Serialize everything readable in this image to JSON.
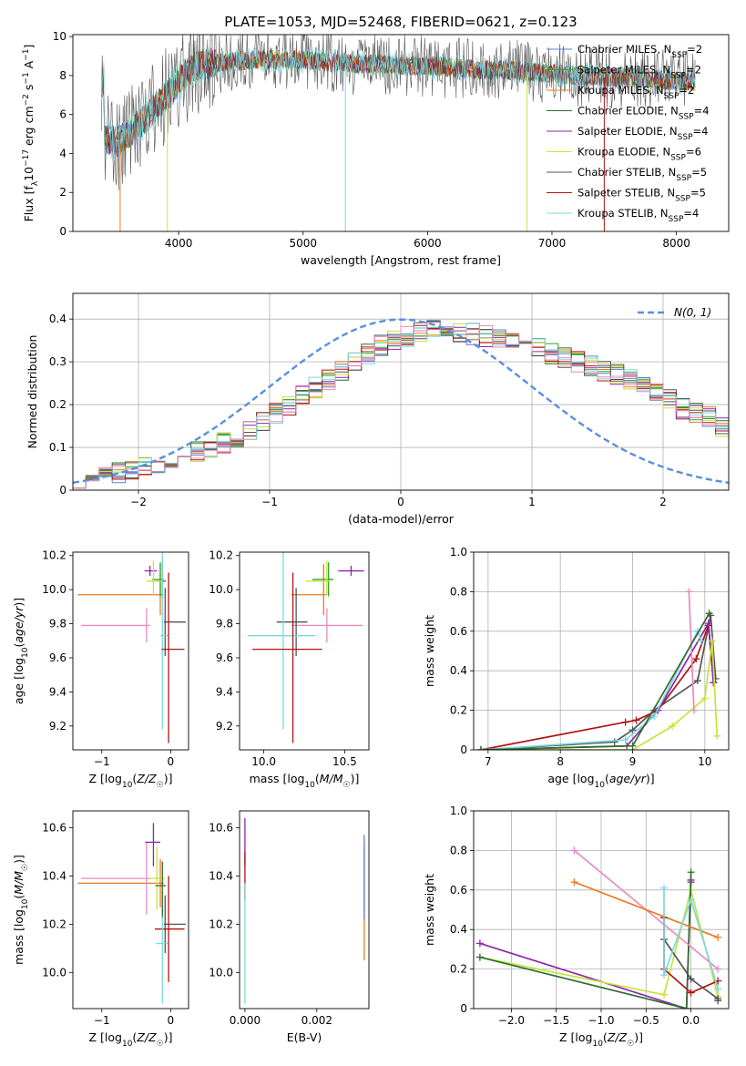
{
  "figure": {
    "title": "PLATE=1053, MJD=52468, FIBERID=0621, z=0.123"
  },
  "colors": {
    "Chabrier MILES": "#5b7fd8",
    "Salpeter MILES": "#2ea52e",
    "Kroupa MILES": "#e87b1e",
    "Chabrier ELODIE": "#2f6e2f",
    "Salpeter ELODIE": "#8e24aa",
    "Kroupa ELODIE": "#c6e43a",
    "Chabrier STELIB": "#555555",
    "Salpeter STELIB": "#b01414",
    "Kroupa STELIB": "#7ad9e0",
    "pink": "#e88ac0",
    "gaussian": "#5b8ee0"
  },
  "chart_data": [
    {
      "id": "spectrum",
      "type": "line",
      "xlabel": "wavelength [Angstrom, rest frame]",
      "ylabel": "Flux [fλ10⁻¹⁷ erg cm⁻² s⁻¹ A⁻¹]",
      "xlim": [
        3150,
        8420
      ],
      "ylim": [
        0,
        10.1
      ],
      "xticks": [
        4000,
        5000,
        6000,
        7000,
        8000
      ],
      "yticks": [
        0,
        2,
        4,
        6,
        8,
        10
      ],
      "continuum": {
        "x": [
          3400,
          3500,
          3600,
          3700,
          3800,
          3900,
          4000,
          4100,
          4200,
          4400,
          4600,
          4800,
          5000,
          5200,
          5400,
          5600,
          5800,
          6000,
          6200,
          6400,
          6600,
          6800,
          7000,
          7200,
          7400,
          7600,
          7800,
          8000,
          8150
        ],
        "y": [
          4.8,
          4.6,
          5.0,
          5.6,
          6.3,
          6.9,
          7.7,
          8.3,
          8.6,
          8.7,
          8.8,
          8.8,
          8.8,
          8.7,
          8.6,
          8.6,
          8.5,
          8.5,
          8.4,
          8.3,
          8.3,
          8.2,
          8.1,
          8.0,
          7.9,
          7.9,
          7.8,
          7.7,
          7.7
        ]
      },
      "xrange": [
        3380,
        8150
      ],
      "legend": [
        "Chabrier MILES, N_SSP=2",
        "Salpeter MILES, N_SSP=2",
        "Kroupa MILES, N_SSP=2",
        "Chabrier ELODIE, N_SSP=4",
        "Salpeter ELODIE, N_SSP=4",
        "Kroupa ELODIE, N_SSP=6",
        "Chabrier STELIB, N_SSP=5",
        "Salpeter STELIB, N_SSP=5",
        "Kroupa STELIB, N_SSP=4"
      ],
      "legend_loc": "upper right"
    },
    {
      "id": "residuals",
      "type": "histogram",
      "xlabel": "(data-model)/error",
      "ylabel": "Normed distribution",
      "xlim": [
        -2.5,
        2.5
      ],
      "ylim": [
        0,
        0.46
      ],
      "xticks": [
        -2,
        -1,
        0,
        1,
        2
      ],
      "yticks": [
        0,
        0.1,
        0.2,
        0.3,
        0.4
      ],
      "bin_width": 0.1,
      "bin_start": -2.5,
      "baseline": [
        0.02,
        0.03,
        0.035,
        0.04,
        0.05,
        0.055,
        0.06,
        0.07,
        0.08,
        0.09,
        0.1,
        0.11,
        0.12,
        0.14,
        0.16,
        0.18,
        0.2,
        0.22,
        0.24,
        0.26,
        0.28,
        0.3,
        0.32,
        0.34,
        0.35,
        0.36,
        0.37,
        0.38,
        0.375,
        0.37,
        0.365,
        0.36,
        0.35,
        0.345,
        0.34,
        0.33,
        0.32,
        0.31,
        0.3,
        0.29,
        0.28,
        0.27,
        0.26,
        0.25,
        0.23,
        0.21,
        0.19,
        0.18,
        0.17,
        0.15,
        0.14,
        0.13,
        0.11,
        0.1,
        0.09,
        0.08,
        0.07,
        0.06,
        0.05,
        0.04
      ],
      "gaussian_label": "N(0, 1)",
      "legend_loc": "upper right"
    },
    {
      "id": "age_vs_Z",
      "type": "errorbar",
      "xlabel": "Z [log10(Z/Z☉)]",
      "ylabel": "age [log10(age/yr)]",
      "xlim": [
        -1.42,
        0.26
      ],
      "ylim": [
        9.06,
        10.22
      ],
      "xticks": [
        -1,
        0
      ],
      "yticks": [
        9.2,
        9.4,
        9.6,
        9.8,
        10.0,
        10.2
      ],
      "points": [
        {
          "model": "Kroupa MILES",
          "x": -0.15,
          "y": 9.97,
          "xerr": [
            1.2,
            0.05
          ],
          "yerr": [
            0.12,
            0.18
          ]
        },
        {
          "model": "Salpeter MILES",
          "x": -0.15,
          "y": 10.06,
          "xerr": [
            0.12,
            0.05
          ],
          "yerr": [
            0.1,
            0.1
          ]
        },
        {
          "model": "Chabrier ELODIE",
          "x": -0.12,
          "y": 10.05,
          "xerr": [
            0.1,
            0.05
          ],
          "yerr": [
            0.1,
            0.12
          ]
        },
        {
          "model": "Salpeter ELODIE",
          "x": -0.3,
          "y": 10.11,
          "xerr": [
            0.08,
            0.1
          ],
          "yerr": [
            0.03,
            0.03
          ]
        },
        {
          "model": "Kroupa ELODIE",
          "x": -0.25,
          "y": 10.05,
          "xerr": [
            0.1,
            0.12
          ],
          "yerr": [
            0.08,
            0.12
          ]
        },
        {
          "model": "pink",
          "x": -0.35,
          "y": 9.79,
          "xerr": [
            0.95,
            0.05
          ],
          "yerr": [
            0.1,
            0.1
          ]
        },
        {
          "model": "Chabrier STELIB",
          "x": -0.08,
          "y": 9.81,
          "xerr": [
            0.02,
            0.3
          ],
          "yerr": [
            0.2,
            0.2
          ]
        },
        {
          "model": "Kroupa STELIB",
          "x": -0.12,
          "y": 9.73,
          "xerr": [
            0.03,
            0.08
          ],
          "yerr": [
            0.55,
            0.55
          ]
        },
        {
          "model": "Salpeter STELIB",
          "x": -0.03,
          "y": 9.65,
          "xerr": [
            0.1,
            0.23
          ],
          "yerr": [
            0.55,
            0.45
          ]
        }
      ]
    },
    {
      "id": "age_vs_mass",
      "type": "errorbar",
      "xlabel": "mass [log10(M/M☉)]",
      "ylabel": "",
      "xlim": [
        9.85,
        10.65
      ],
      "ylim": [
        9.06,
        10.22
      ],
      "xticks": [
        10.0,
        10.5
      ],
      "yticks": [
        9.2,
        9.4,
        9.6,
        9.8,
        10.0,
        10.2
      ],
      "points": [
        {
          "model": "Kroupa MILES",
          "x": 10.37,
          "y": 9.97,
          "xerr": [
            0.2,
            0.02
          ],
          "yerr": [
            0.12,
            0.18
          ]
        },
        {
          "model": "Salpeter MILES",
          "x": 10.4,
          "y": 10.06,
          "xerr": [
            0.1,
            0.03
          ],
          "yerr": [
            0.1,
            0.1
          ]
        },
        {
          "model": "Salpeter ELODIE",
          "x": 10.54,
          "y": 10.11,
          "xerr": [
            0.08,
            0.08
          ],
          "yerr": [
            0.03,
            0.03
          ]
        },
        {
          "model": "Kroupa ELODIE",
          "x": 10.39,
          "y": 10.05,
          "xerr": [
            0.13,
            0.02
          ],
          "yerr": [
            0.08,
            0.12
          ]
        },
        {
          "model": "pink",
          "x": 10.39,
          "y": 9.79,
          "xerr": [
            0.22,
            0.22
          ],
          "yerr": [
            0.1,
            0.1
          ]
        },
        {
          "model": "Chabrier STELIB",
          "x": 10.2,
          "y": 9.81,
          "xerr": [
            0.12,
            0.07
          ],
          "yerr": [
            0.2,
            0.2
          ]
        },
        {
          "model": "Kroupa STELIB",
          "x": 10.12,
          "y": 9.73,
          "xerr": [
            0.22,
            0.2
          ],
          "yerr": [
            0.55,
            0.55
          ]
        },
        {
          "model": "Salpeter STELIB",
          "x": 10.18,
          "y": 9.65,
          "xerr": [
            0.25,
            0.18
          ],
          "yerr": [
            0.55,
            0.45
          ]
        }
      ]
    },
    {
      "id": "weight_vs_age",
      "type": "line",
      "xlabel": "age [log10(age/yr)]",
      "ylabel": "mass weight",
      "xlim": [
        6.8,
        10.33
      ],
      "ylim": [
        0,
        1
      ],
      "xticks": [
        7,
        8,
        9,
        10
      ],
      "yticks": [
        0.0,
        0.2,
        0.4,
        0.6,
        0.8,
        1.0
      ],
      "series": [
        {
          "model": "Chabrier STELIB",
          "x": [
            6.9,
            8.75,
            9.0,
            9.3,
            9.9,
            10.08,
            10.15
          ],
          "y": [
            0.0,
            0.04,
            0.1,
            0.2,
            0.35,
            0.68,
            0.36
          ]
        },
        {
          "model": "Salpeter STELIB",
          "x": [
            6.9,
            8.9,
            9.05,
            9.35,
            9.88,
            10.05,
            10.12
          ],
          "y": [
            0.0,
            0.14,
            0.15,
            0.2,
            0.46,
            0.63,
            0.34
          ]
        },
        {
          "model": "Salpeter ELODIE",
          "x": [
            6.9,
            8.92,
            9.35,
            10.05,
            10.12
          ],
          "y": [
            0.0,
            0.02,
            0.2,
            0.64,
            0.34
          ]
        },
        {
          "model": "Kroupa ELODIE",
          "x": [
            6.9,
            9.0,
            9.55,
            10.0,
            10.1,
            10.17
          ],
          "y": [
            0.0,
            0.0,
            0.12,
            0.26,
            0.55,
            0.07
          ]
        },
        {
          "model": "Kroupa STELIB",
          "x": [
            6.9,
            8.9,
            9.3,
            9.9,
            9.95
          ],
          "y": [
            0.0,
            0.05,
            0.17,
            0.6,
            0.55
          ]
        },
        {
          "model": "pink",
          "x": [
            9.78,
            9.85
          ],
          "y": [
            0.8,
            0.2
          ]
        },
        {
          "model": "Chabrier ELODIE",
          "x": [
            6.9,
            9.0,
            10.06
          ],
          "y": [
            0.0,
            0.02,
            0.69
          ]
        }
      ]
    },
    {
      "id": "mass_vs_Z",
      "type": "errorbar",
      "xlabel": "Z [log10(Z/Z☉)]",
      "ylabel": "mass [log10(M/M☉)]",
      "xlim": [
        -1.42,
        0.26
      ],
      "ylim": [
        9.85,
        10.67
      ],
      "xticks": [
        -1,
        0
      ],
      "yticks": [
        10.0,
        10.2,
        10.4,
        10.6
      ],
      "points": [
        {
          "model": "Kroupa MILES",
          "x": -0.15,
          "y": 10.37,
          "xerr": [
            1.2,
            0.05
          ],
          "yerr": [
            0.1,
            0.1
          ]
        },
        {
          "model": "pink",
          "x": -0.35,
          "y": 10.39,
          "xerr": [
            0.95,
            0.05
          ],
          "yerr": [
            0.15,
            0.15
          ]
        },
        {
          "model": "Salpeter ELODIE",
          "x": -0.25,
          "y": 10.54,
          "xerr": [
            0.12,
            0.1
          ],
          "yerr": [
            0.1,
            0.08
          ]
        },
        {
          "model": "Kroupa ELODIE",
          "x": -0.2,
          "y": 10.39,
          "xerr": [
            0.1,
            0.12
          ],
          "yerr": [
            0.13,
            0.13
          ]
        },
        {
          "model": "Chabrier STELIB",
          "x": -0.08,
          "y": 10.2,
          "xerr": [
            0.02,
            0.3
          ],
          "yerr": [
            0.12,
            0.12
          ]
        },
        {
          "model": "Salpeter STELIB",
          "x": -0.03,
          "y": 10.18,
          "xerr": [
            0.2,
            0.23
          ],
          "yerr": [
            0.22,
            0.22
          ]
        },
        {
          "model": "Kroupa STELIB",
          "x": -0.12,
          "y": 10.12,
          "xerr": [
            0.1,
            0.08
          ],
          "yerr": [
            0.25,
            0.22
          ]
        },
        {
          "model": "Chabrier ELODIE",
          "x": -0.12,
          "y": 10.36,
          "xerr": [
            0.1,
            0.05
          ],
          "yerr": [
            0.13,
            0.1
          ]
        }
      ]
    },
    {
      "id": "mass_vs_ebv",
      "type": "errorbar",
      "xlabel": "E(B-V)",
      "ylabel": "",
      "xlim": [
        -0.00015,
        0.00345
      ],
      "ylim": [
        9.85,
        10.67
      ],
      "xticks": [
        0.0,
        0.002
      ],
      "xtick_labels": [
        "0.000",
        "0.002"
      ],
      "yticks": [
        10.0,
        10.2,
        10.4,
        10.6
      ],
      "points": [
        {
          "model": "Salpeter ELODIE",
          "x": 0.0,
          "y": 10.54,
          "xerr": [
            0,
            0
          ],
          "yerr": [
            0.1,
            0.1
          ]
        },
        {
          "model": "Salpeter STELIB",
          "x": 0.0,
          "y": 10.4,
          "xerr": [
            0,
            0
          ],
          "yerr": [
            0.1,
            0.1
          ]
        },
        {
          "model": "Kroupa STELIB",
          "x": 0.0,
          "y": 10.12,
          "xerr": [
            0,
            0
          ],
          "yerr": [
            0.25,
            0.25
          ]
        },
        {
          "model": "Kroupa MILES",
          "x": 0.00332,
          "y": 10.37,
          "xerr": [
            0,
            0
          ],
          "yerr": [
            0.32,
            0.15
          ]
        },
        {
          "model": "Chabrier MILES",
          "x": 0.00332,
          "y": 10.37,
          "xerr": [
            0,
            0
          ],
          "yerr": [
            0.15,
            0.2
          ]
        }
      ]
    },
    {
      "id": "weight_vs_Z",
      "type": "line",
      "xlabel": "Z [log10(Z/Z☉)]",
      "ylabel": "mass weight",
      "xlim": [
        -2.42,
        0.42
      ],
      "ylim": [
        0,
        1
      ],
      "xticks": [
        -2.0,
        -1.5,
        -1.0,
        -0.5,
        0.0
      ],
      "xtick_labels": [
        "−2.0",
        "−1.5",
        "−1.0",
        "−0.5",
        "0.0"
      ],
      "yticks": [
        0.0,
        0.2,
        0.4,
        0.6,
        0.8,
        1.0
      ],
      "series": [
        {
          "model": "Salpeter ELODIE",
          "x": [
            -2.35,
            -0.05,
            0.0,
            0.0
          ],
          "y": [
            0.33,
            0.0,
            0.65,
            0.64
          ]
        },
        {
          "model": "Kroupa ELODIE",
          "x": [
            -2.35,
            -0.3,
            0.0,
            0.3
          ],
          "y": [
            0.26,
            0.07,
            0.6,
            0.06
          ]
        },
        {
          "model": "Chabrier ELODIE",
          "x": [
            -2.35,
            -0.05,
            0.0
          ],
          "y": [
            0.26,
            0.0,
            0.69
          ]
        },
        {
          "model": "pink",
          "x": [
            -1.3,
            0.3
          ],
          "y": [
            0.8,
            0.2
          ]
        },
        {
          "model": "Kroupa MILES",
          "x": [
            -1.3,
            0.3
          ],
          "y": [
            0.64,
            0.36
          ]
        },
        {
          "model": "Chabrier STELIB",
          "x": [
            -0.3,
            0.0,
            0.3,
            0.3
          ],
          "y": [
            0.35,
            0.15,
            0.05,
            0.04
          ]
        },
        {
          "model": "Salpeter STELIB",
          "x": [
            -0.3,
            -0.3,
            0.0,
            0.3
          ],
          "y": [
            0.46,
            0.2,
            0.08,
            0.14
          ]
        },
        {
          "model": "Kroupa STELIB",
          "x": [
            -0.3,
            -0.3,
            0.0,
            0.3
          ],
          "y": [
            0.61,
            0.17,
            0.55,
            0.1
          ]
        }
      ]
    }
  ]
}
